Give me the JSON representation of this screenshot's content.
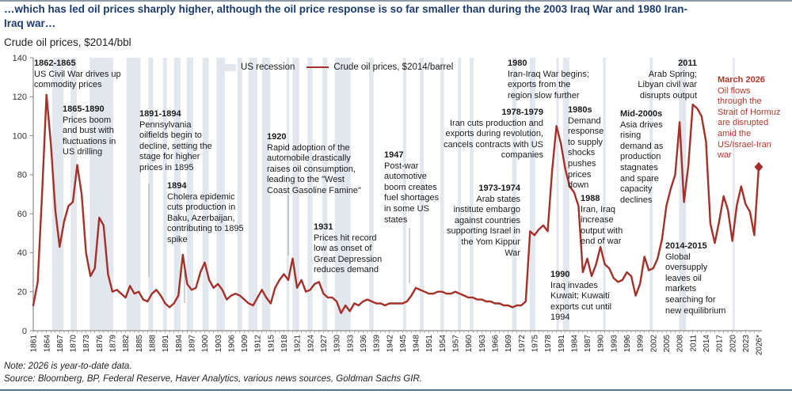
{
  "header": {
    "title_line1": "…which has led oil prices sharply higher, although the oil price response is so far smaller than during the 2003 Iraq War and 1980 Iran-",
    "title_line2": "Iraq war…",
    "subtitle": "Crude oil prices, $2014/bbl"
  },
  "footer": {
    "note": "Note: 2026 is year-to-date data.",
    "source": "Source: Bloomberg, BP, Federal Reserve, Haver Analytics, various news sources, Goldman Sachs GIR."
  },
  "legend": {
    "recession_label": "US recession",
    "line_label": "Crude oil prices, $2014/barrel"
  },
  "colors": {
    "line": "#a4302a",
    "red_text": "#b2382e",
    "recession_band": "#e2e7ee",
    "title": "#1d3c6e",
    "axis": "#888888",
    "tick_text": "#222222",
    "connector": "#a0a6ad"
  },
  "chart_data": {
    "type": "line",
    "title": "Crude oil prices, $2014/bbl",
    "xlabel": "",
    "ylabel": "",
    "x_first_year": 1861,
    "x_last_year": 2026,
    "x_tick_step": 3,
    "x_last_tick_suffix": "*",
    "ylim": [
      0,
      140
    ],
    "y_tick_step": 20,
    "grid": false,
    "legend_position": "top-center",
    "series": [
      {
        "name": "Crude oil prices, $2014/barrel",
        "values": [
          13,
          25,
          70,
          121,
          96,
          62,
          43,
          56,
          64,
          66,
          85,
          70,
          40,
          28,
          32,
          58,
          54,
          29,
          20,
          21,
          19,
          17,
          23,
          19,
          20,
          16,
          15,
          19,
          21,
          18,
          14,
          12,
          14,
          18,
          39,
          24,
          21,
          22,
          30,
          35,
          26,
          22,
          24,
          21,
          16,
          18,
          19,
          18,
          16,
          14,
          13,
          17,
          21,
          17,
          14,
          22,
          26,
          29,
          26,
          37,
          22,
          26,
          20,
          21,
          24,
          25,
          19,
          17,
          17,
          15,
          9,
          13,
          10,
          14,
          13,
          15,
          16,
          15,
          14,
          14,
          13,
          14,
          14,
          14,
          14,
          15,
          18,
          22,
          21,
          20,
          19,
          19,
          20,
          20,
          19,
          19,
          20,
          19,
          18,
          17,
          17,
          16,
          16,
          15,
          15,
          14,
          14,
          13,
          13,
          12,
          13,
          13,
          15,
          51,
          49,
          52,
          54,
          51,
          82,
          105,
          96,
          83,
          74,
          71,
          64,
          30,
          37,
          28,
          34,
          43,
          34,
          32,
          27,
          25,
          26,
          30,
          28,
          18,
          24,
          38,
          31,
          32,
          37,
          47,
          64,
          73,
          80,
          107,
          66,
          85,
          116,
          114,
          110,
          97,
          55,
          45,
          56,
          69,
          62,
          46,
          64,
          74,
          65,
          61,
          49,
          84
        ],
        "last_point_marker": "diamond"
      }
    ],
    "recessions_legend_label": "US recession",
    "recessions": [
      [
        1865.3,
        1867.9
      ],
      [
        1869.5,
        1870.9
      ],
      [
        1873.8,
        1879.2
      ],
      [
        1882.2,
        1885.4
      ],
      [
        1887.2,
        1888.3
      ],
      [
        1890.5,
        1891.4
      ],
      [
        1893.0,
        1894.5
      ],
      [
        1895.9,
        1897.4
      ],
      [
        1899.5,
        1900.9
      ],
      [
        1902.7,
        1904.6
      ],
      [
        1907.4,
        1908.5
      ],
      [
        1910.0,
        1912.0
      ],
      [
        1913.0,
        1914.9
      ],
      [
        1918.6,
        1919.2
      ],
      [
        1920.0,
        1921.5
      ],
      [
        1923.4,
        1924.5
      ],
      [
        1926.8,
        1927.9
      ],
      [
        1929.6,
        1933.2
      ],
      [
        1937.4,
        1938.4
      ],
      [
        1945.1,
        1945.8
      ],
      [
        1948.9,
        1949.8
      ],
      [
        1953.6,
        1954.4
      ],
      [
        1957.6,
        1958.3
      ],
      [
        1960.3,
        1961.1
      ],
      [
        1969.9,
        1970.9
      ],
      [
        1973.9,
        1975.2
      ],
      [
        1980.0,
        1980.5
      ],
      [
        1981.5,
        1982.9
      ],
      [
        1990.6,
        1991.2
      ],
      [
        2001.2,
        2001.9
      ],
      [
        2007.9,
        2009.5
      ],
      [
        2020.1,
        2020.3
      ]
    ],
    "annotations": [
      {
        "id": "1862-1865",
        "label": "1862-1865",
        "text": "US Civil War drives up commodity prices",
        "x": 43,
        "y": 74,
        "w": 130,
        "align": "left"
      },
      {
        "id": "1865-1890",
        "label": "1865-1890",
        "text": "Prices boom and bust with fluctuations in US drilling",
        "x": 79,
        "y": 132,
        "w": 80,
        "align": "left"
      },
      {
        "id": "1891-1894",
        "label": "1891-1894",
        "text": "Pennsylvania oilfields begin to decline, setting the stage for higher prices in 1895",
        "x": 176,
        "y": 138,
        "w": 100,
        "align": "left"
      },
      {
        "id": "1894",
        "label": "1894",
        "text": "Cholera epidemic cuts production in Baku, Azerbaijan, contributing to 1895 spike",
        "x": 211,
        "y": 229,
        "w": 104,
        "align": "left"
      },
      {
        "id": "1920",
        "label": "1920",
        "text": "Rapid adoption of the automobile drastically raises oil consumption, leading to the \"West Coast Gasoline Famine\"",
        "x": 337,
        "y": 167,
        "w": 122,
        "align": "left"
      },
      {
        "id": "1931",
        "label": "1931",
        "text": "Prices hit record low as onset of Great Depression reduces demand",
        "x": 396,
        "y": 281,
        "w": 92,
        "align": "left"
      },
      {
        "id": "1947",
        "label": "1947",
        "text": "Post-war automotive boom creates fuel shortages in some US states",
        "x": 485,
        "y": 190,
        "w": 74,
        "align": "left"
      },
      {
        "id": "1973-1974",
        "label": "1973-1974",
        "text": "Arab states institute embargo against countries supporting Israel in the Yom Kippur War",
        "x": 561,
        "y": 232,
        "w": 96,
        "align": "right"
      },
      {
        "id": "1978-1979",
        "label": "1978-1979",
        "text": "Iran cuts production and exports during revolution, cancels contracts with US companies",
        "x": 540,
        "y": 136,
        "w": 146,
        "align": "right"
      },
      {
        "id": "1980",
        "label": "1980",
        "text": "Iran-Iraq War begins; exports from the region slow further",
        "x": 641,
        "y": 74,
        "w": 112,
        "align": "left"
      },
      {
        "id": "1980s",
        "label": "1980s",
        "text": "Demand response to supply shocks pushes prices down",
        "x": 717,
        "y": 133,
        "w": 50,
        "align": "left"
      },
      {
        "id": "1988",
        "label": "1988",
        "text": "Iran, Iraq increase output with end of war",
        "x": 733,
        "y": 245,
        "w": 60,
        "align": "left"
      },
      {
        "id": "1990",
        "label": "1990",
        "text": "Iraq invades Kuwait; Kuwaiti exports cut until 1994",
        "x": 695,
        "y": 341,
        "w": 82,
        "align": "left"
      },
      {
        "id": "mid-2000s",
        "label": "Mid-2000s",
        "text": "Asia drives rising demand as production stagnates and spare capacity declines",
        "x": 783,
        "y": 138,
        "w": 62,
        "align": "left"
      },
      {
        "id": "2011",
        "label": "2011",
        "text": "Arab Spring; Libyan civil war disrupts output",
        "x": 794,
        "y": 74,
        "w": 86,
        "align": "right"
      },
      {
        "id": "2014-2015",
        "label": "2014-2015",
        "text": "Global oversupply leaves oil markets searching for new equilibrium",
        "x": 840,
        "y": 305,
        "w": 86,
        "align": "left"
      },
      {
        "id": "march-2026",
        "label": "March 2026",
        "text": "Oil flows through the Strait of Hormuz are disrupted amid the US/Israel-Iran war",
        "x": 906,
        "y": 95,
        "w": 80,
        "align": "left",
        "red": true
      }
    ],
    "connectors": [
      {
        "x": 188,
        "y1": 232,
        "y2": 350
      },
      {
        "x": 233,
        "y1": 340,
        "y2": 383
      },
      {
        "x": 364,
        "y1": 247,
        "y2": 323
      },
      {
        "x": 517,
        "y1": 288,
        "y2": 358
      }
    ]
  }
}
